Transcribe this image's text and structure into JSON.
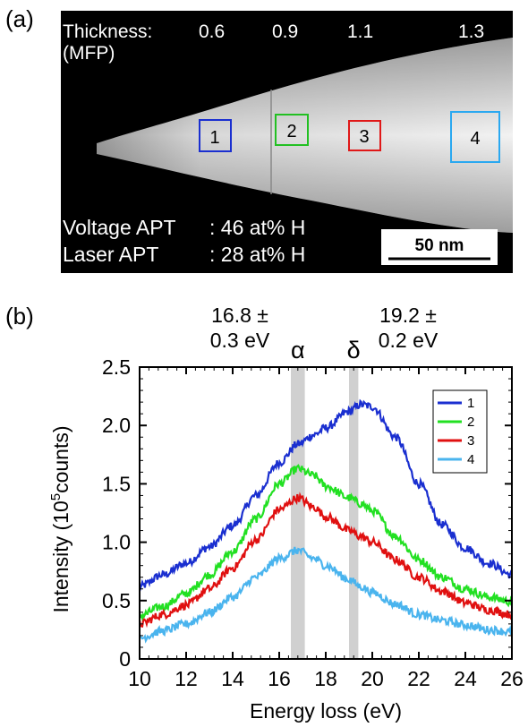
{
  "panel_a": {
    "label": "(a)",
    "thickness_label": "Thickness:",
    "thickness_unit": "(MFP)",
    "thickness_values": [
      "0.6",
      "0.9",
      "1.1",
      "1.3"
    ],
    "regions": [
      "1",
      "2",
      "3",
      "4"
    ],
    "region_colors": [
      "#1a2fd0",
      "#22c022",
      "#e01818",
      "#2aa8f0"
    ],
    "voltage_label": "Voltage APT",
    "voltage_value": ": 46 at% H",
    "laser_label": "Laser APT",
    "laser_value": ": 28 at% H",
    "scale_bar": "50 nm"
  },
  "panel_b": {
    "label": "(b)"
  },
  "chart_data": {
    "type": "line",
    "xlabel": "Energy loss (eV)",
    "ylabel_main": "Intensity (10",
    "ylabel_sup": "5",
    "ylabel_end": "counts)",
    "xlim": [
      10,
      26
    ],
    "ylim": [
      0,
      2.5
    ],
    "xticks": [
      10,
      12,
      14,
      16,
      18,
      20,
      22,
      24,
      26
    ],
    "xtick_labels": [
      "10",
      "12",
      "14",
      "16",
      "18",
      "20",
      "22",
      "24",
      "26"
    ],
    "yticks": [
      0,
      0.5,
      1.0,
      1.5,
      2.0,
      2.5
    ],
    "ytick_labels": [
      "0",
      "0.5",
      "1.0",
      "1.5",
      "2.0",
      "2.5"
    ],
    "legend_position": "top-right",
    "bands": [
      {
        "name": "α",
        "center": 16.8,
        "width": 0.6,
        "value_line1": "16.8 ±",
        "value_line2": "0.3 eV"
      },
      {
        "name": "δ",
        "center": 19.2,
        "width": 0.4,
        "value_line1": "19.2 ±",
        "value_line2": "0.2 eV"
      }
    ],
    "band_color": "#d0d0d0",
    "x": [
      10,
      11,
      12,
      13,
      14,
      15,
      16,
      16.8,
      17.5,
      18,
      19,
      19.5,
      20,
      21,
      22,
      23,
      24,
      25,
      26
    ],
    "series": [
      {
        "name": "1",
        "color": "#1a2fd0",
        "values": [
          0.62,
          0.72,
          0.82,
          0.96,
          1.14,
          1.4,
          1.68,
          1.84,
          1.92,
          1.98,
          2.12,
          2.18,
          2.16,
          1.9,
          1.5,
          1.15,
          0.95,
          0.82,
          0.72
        ]
      },
      {
        "name": "2",
        "color": "#22e022",
        "values": [
          0.37,
          0.45,
          0.56,
          0.72,
          0.92,
          1.2,
          1.5,
          1.63,
          1.57,
          1.48,
          1.38,
          1.33,
          1.27,
          1.05,
          0.85,
          0.7,
          0.6,
          0.53,
          0.49
        ]
      },
      {
        "name": "3",
        "color": "#e01010",
        "values": [
          0.3,
          0.38,
          0.46,
          0.6,
          0.78,
          1.02,
          1.28,
          1.38,
          1.3,
          1.22,
          1.1,
          1.05,
          1.0,
          0.85,
          0.7,
          0.58,
          0.48,
          0.42,
          0.38
        ]
      },
      {
        "name": "4",
        "color": "#4ab4ee",
        "values": [
          0.18,
          0.24,
          0.3,
          0.4,
          0.53,
          0.7,
          0.86,
          0.93,
          0.86,
          0.8,
          0.68,
          0.62,
          0.57,
          0.47,
          0.38,
          0.33,
          0.29,
          0.25,
          0.23
        ]
      }
    ]
  }
}
